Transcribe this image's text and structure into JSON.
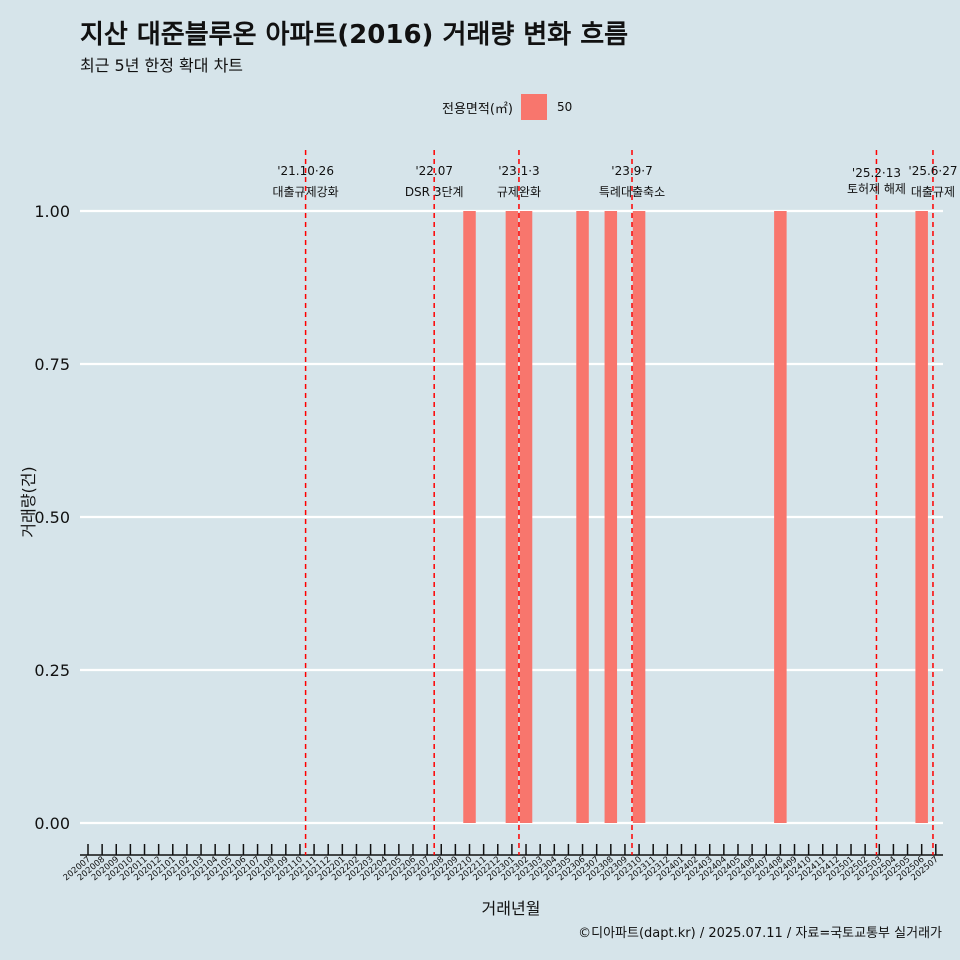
{
  "title": "지산 대준블루온 아파트(2016) 거래량 변화 흐름",
  "subtitle": "최근 5년 한정 확대 차트",
  "caption": "©디아파트(dapt.kr) / 2025.07.11 / 자료=국토교통부 실거래가",
  "colors": {
    "background": "#d6e4ea",
    "bar": "#f8766d",
    "vline": "#ff0000",
    "grid": "#ffffff"
  },
  "chart_data": {
    "type": "bar",
    "xlabel": "거래년월",
    "ylabel": "거래량(건)",
    "ylim": [
      0,
      1
    ],
    "y_ticks": [
      "0.00",
      "0.25",
      "0.50",
      "0.75",
      "1.00"
    ],
    "legend": {
      "title": "전용면적(㎡)",
      "position": "top"
    },
    "categories": [
      "202007",
      "202008",
      "202009",
      "202010",
      "202011",
      "202012",
      "202101",
      "202102",
      "202103",
      "202104",
      "202105",
      "202106",
      "202107",
      "202108",
      "202109",
      "202110",
      "202111",
      "202112",
      "202201",
      "202202",
      "202203",
      "202204",
      "202205",
      "202206",
      "202207",
      "202208",
      "202209",
      "202210",
      "202211",
      "202212",
      "202301",
      "202302",
      "202303",
      "202304",
      "202305",
      "202306",
      "202307",
      "202308",
      "202309",
      "202310",
      "202311",
      "202312",
      "202401",
      "202402",
      "202403",
      "202404",
      "202405",
      "202406",
      "202407",
      "202408",
      "202409",
      "202410",
      "202411",
      "202412",
      "202501",
      "202502",
      "202503",
      "202504",
      "202505",
      "202506",
      "202507"
    ],
    "series": [
      {
        "name": "50",
        "values": [
          0,
          0,
          0,
          0,
          0,
          0,
          0,
          0,
          0,
          0,
          0,
          0,
          0,
          0,
          0,
          0,
          0,
          0,
          0,
          0,
          0,
          0,
          0,
          0,
          0,
          0,
          0,
          1,
          0,
          0,
          1,
          1,
          0,
          0,
          0,
          1,
          0,
          1,
          0,
          1,
          0,
          0,
          0,
          0,
          0,
          0,
          0,
          0,
          0,
          1,
          0,
          0,
          0,
          0,
          0,
          0,
          0,
          0,
          0,
          1,
          0
        ]
      }
    ],
    "events": [
      {
        "month": 15.4,
        "date": "'21.10·26",
        "label": "대출규제강화",
        "date_y": 175,
        "label_y": 196
      },
      {
        "month": 24.5,
        "date": "'22.07",
        "label": "DSR 3단계",
        "date_y": 175,
        "label_y": 196
      },
      {
        "month": 30.5,
        "date": "'23.1·3",
        "label": "규제완화",
        "date_y": 175,
        "label_y": 196
      },
      {
        "month": 38.5,
        "date": "'23.9·7",
        "label": "특례대출축소",
        "date_y": 175,
        "label_y": 196
      },
      {
        "month": 55.8,
        "date": "'25.2·13",
        "label": "토허제 해제",
        "date_y": 177,
        "label_y": 193
      },
      {
        "month": 59.8,
        "date": "'25.6·27",
        "label": "대출규제",
        "date_y": 175,
        "label_y": 196
      }
    ]
  }
}
